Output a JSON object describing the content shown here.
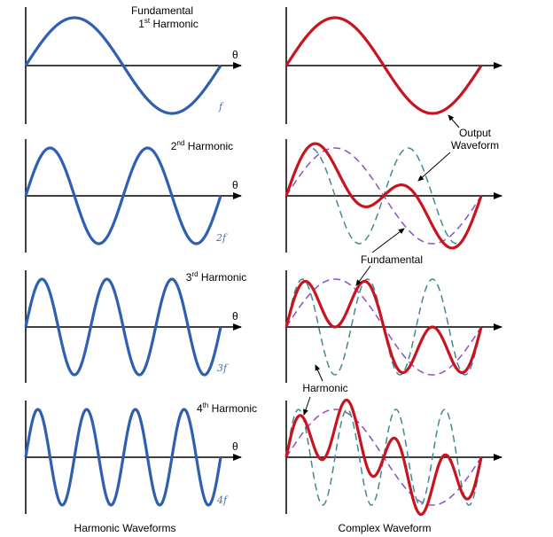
{
  "colors": {
    "harmonic_wave": "#2f5fb0",
    "output_wave": "#c8141e",
    "fundamental_dashed": "#8e4fc0",
    "harmonic_dashed": "#3f8a93",
    "axis": "#000000"
  },
  "axis_symbol": "θ",
  "left_panels": [
    {
      "title_line1": "Fundamental",
      "title_pre": "1",
      "title_sup": "st",
      "title_post": " Harmonic",
      "freq_label": "f",
      "cycles": 1
    },
    {
      "title_pre": "2",
      "title_sup": "nd",
      "title_post": " Harmonic",
      "freq_label": "2f",
      "cycles": 2
    },
    {
      "title_pre": "3",
      "title_sup": "rd",
      "title_post": " Harmonic",
      "freq_label": "3f",
      "cycles": 3
    },
    {
      "title_pre": "4",
      "title_sup": "th",
      "title_post": " Harmonic",
      "freq_label": "4f",
      "cycles": 4
    }
  ],
  "annotations": {
    "output_line1": "Output",
    "output_line2": "Waveform",
    "fundamental": "Fundamental",
    "harmonic": "Harmonic"
  },
  "captions": {
    "left": "Harmonic Waveforms",
    "right": "Complex Waveform"
  }
}
